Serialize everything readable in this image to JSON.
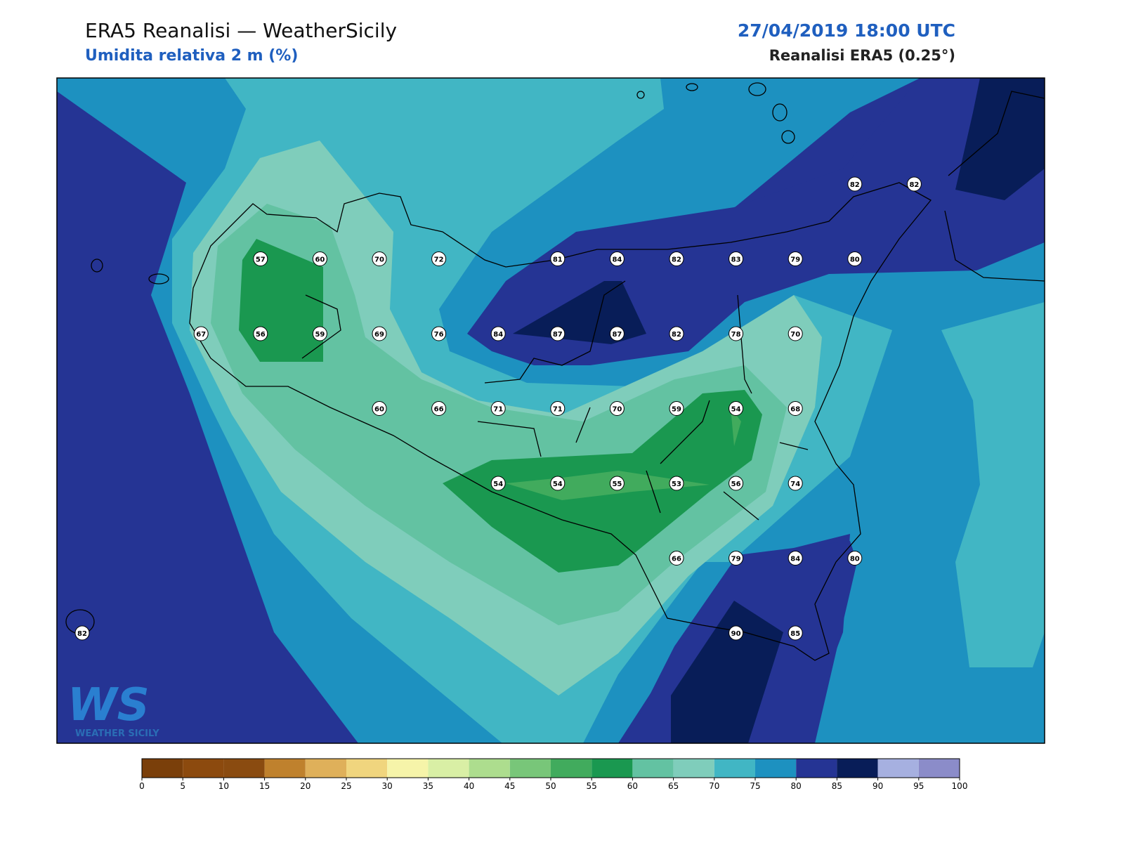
{
  "header": {
    "title": "ERA5 Reanalisi — WeatherSicily",
    "subtitle": "Umidita relativa 2 m (%)",
    "date": "27/04/2019 18:00 UTC",
    "source": "Reanalisi ERA5 (0.25°)"
  },
  "stations": {
    "values": [
      82,
      82,
      57,
      60,
      70,
      72,
      81,
      84,
      82,
      83,
      79,
      80,
      67,
      56,
      59,
      69,
      76,
      84,
      87,
      87,
      82,
      78,
      70,
      60,
      66,
      71,
      71,
      70,
      59,
      54,
      68,
      54,
      54,
      55,
      53,
      56,
      74,
      66,
      79,
      84,
      80,
      82,
      90,
      85
    ]
  },
  "colorbar": {
    "ticks": [
      0,
      5,
      10,
      15,
      20,
      25,
      30,
      35,
      40,
      45,
      50,
      55,
      60,
      65,
      70,
      75,
      80,
      85,
      90,
      95,
      100
    ],
    "colors": [
      "#7a3f0a",
      "#8c4a0e",
      "#8a4b10",
      "#bf812d",
      "#dfb05a",
      "#f0d57e",
      "#f6f4a9",
      "#d9efa5",
      "#addd8e",
      "#78c679",
      "#41ab5d",
      "#1a9850",
      "#63c2a2",
      "#7fcdbb",
      "#41b6c4",
      "#1d91c0",
      "#253494",
      "#081d58",
      "#a6b0e0",
      "#8b8cc9"
    ]
  },
  "logo": {
    "mark": "WS",
    "text": "WEATHER SICILY"
  }
}
